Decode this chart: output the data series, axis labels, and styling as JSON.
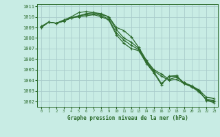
{
  "title": "Graphe pression niveau de la mer (hPa)",
  "background_color": "#c8ece4",
  "grid_color": "#aacccc",
  "line_color": "#2d6b2d",
  "xlim": [
    -0.5,
    23.5
  ],
  "ylim": [
    1001.5,
    1011.2
  ],
  "yticks": [
    1002,
    1003,
    1004,
    1005,
    1006,
    1007,
    1008,
    1009,
    1010,
    1011
  ],
  "xticks": [
    0,
    1,
    2,
    3,
    4,
    5,
    6,
    7,
    8,
    9,
    10,
    11,
    12,
    13,
    14,
    15,
    16,
    17,
    18,
    19,
    20,
    21,
    22,
    23
  ],
  "series": [
    [
      1009.1,
      1009.5,
      1009.4,
      1009.7,
      1010.0,
      1010.4,
      1010.5,
      1010.4,
      1010.3,
      1010.0,
      1009.0,
      1008.7,
      1008.1,
      1007.1,
      1005.9,
      1005.0,
      1004.6,
      1004.1,
      1004.3,
      1003.8,
      1003.5,
      1003.1,
      1002.4,
      1002.3
    ],
    [
      1009.0,
      1009.5,
      1009.4,
      1009.6,
      1009.9,
      1010.1,
      1010.3,
      1010.4,
      1010.2,
      1010.0,
      1008.8,
      1008.0,
      1007.6,
      1007.0,
      1005.8,
      1004.9,
      1004.4,
      1004.0,
      1004.1,
      1003.7,
      1003.4,
      1002.9,
      1002.2,
      1002.1
    ],
    [
      1009.0,
      1009.5,
      1009.4,
      1009.6,
      1009.9,
      1010.1,
      1010.2,
      1010.3,
      1010.1,
      1009.8,
      1008.5,
      1007.8,
      1007.3,
      1006.9,
      1005.7,
      1004.8,
      1003.7,
      1004.35,
      1004.4,
      1003.7,
      1003.4,
      1003.0,
      1002.15,
      1002.0
    ],
    [
      1009.0,
      1009.5,
      1009.4,
      1009.6,
      1009.9,
      1010.0,
      1010.1,
      1010.2,
      1010.0,
      1009.7,
      1008.3,
      1007.5,
      1007.0,
      1006.8,
      1005.6,
      1004.7,
      1003.6,
      1004.4,
      1004.45,
      1003.75,
      1003.45,
      1003.05,
      1002.1,
      1001.9
    ]
  ]
}
